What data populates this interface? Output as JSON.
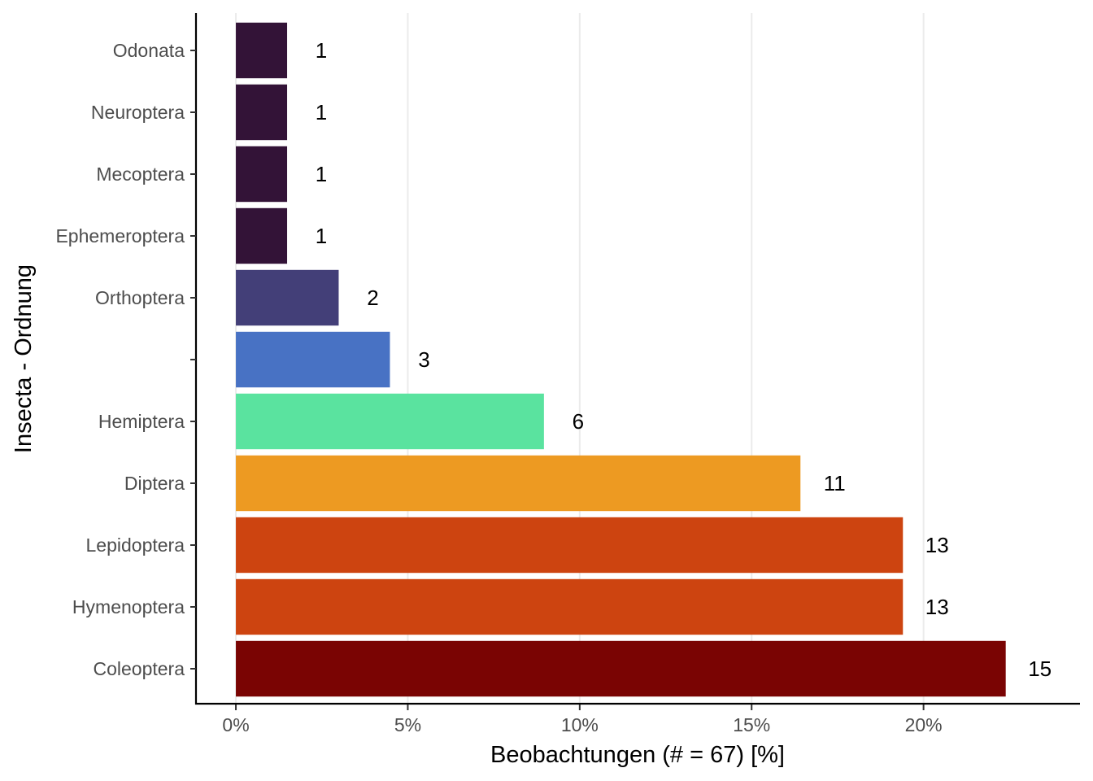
{
  "chart_data": {
    "type": "bar",
    "orientation": "horizontal",
    "categories": [
      "Odonata",
      "Neuroptera",
      "Mecoptera",
      "Ephemeroptera",
      "Orthoptera",
      "",
      "Hemiptera",
      "Diptera",
      "Lepidoptera",
      "Hymenoptera",
      "Coleoptera"
    ],
    "counts": [
      1,
      1,
      1,
      1,
      2,
      3,
      6,
      11,
      13,
      13,
      15
    ],
    "values": [
      1.49,
      1.49,
      1.49,
      1.49,
      2.99,
      4.48,
      8.96,
      16.42,
      19.4,
      19.4,
      22.39
    ],
    "colors": [
      "#331337",
      "#331337",
      "#331337",
      "#331337",
      "#433F78",
      "#4872C4",
      "#5AE39F",
      "#ED9A22",
      "#CD4410",
      "#CD4410",
      "#7A0403"
    ],
    "xlabel": "Beobachtungen (# = 67) [%]",
    "ylabel": "Insecta - Ordnung",
    "xticks": [
      "0%",
      "5%",
      "10%",
      "15%",
      "20%"
    ],
    "xtick_values": [
      0,
      5,
      10,
      15,
      20
    ],
    "xlim": [
      -1.16,
      24.55
    ],
    "grid": "vertical major",
    "legend": "none"
  }
}
